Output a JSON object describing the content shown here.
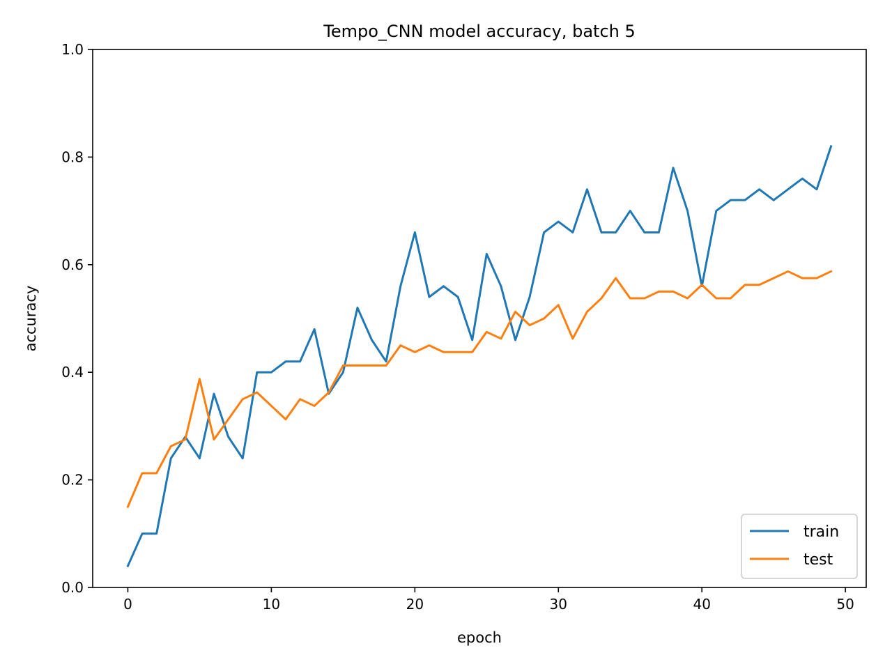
{
  "chart_data": {
    "type": "line",
    "title": "Tempo_CNN model accuracy, batch 5",
    "xlabel": "epoch",
    "ylabel": "accuracy",
    "xlim": [
      -2.45,
      51.45
    ],
    "ylim": [
      0,
      1
    ],
    "xticks": [
      0,
      10,
      20,
      30,
      40,
      50
    ],
    "xtick_labels": [
      "0",
      "10",
      "20",
      "30",
      "40",
      "50"
    ],
    "yticks": [
      0,
      0.2,
      0.4,
      0.6,
      0.8,
      1.0
    ],
    "ytick_labels": [
      "0.0",
      "0.2",
      "0.4",
      "0.6",
      "0.8",
      "1.0"
    ],
    "grid": false,
    "legend_position": "bottom-right",
    "x": [
      0,
      1,
      2,
      3,
      4,
      5,
      6,
      7,
      8,
      9,
      10,
      11,
      12,
      13,
      14,
      15,
      16,
      17,
      18,
      19,
      20,
      21,
      22,
      23,
      24,
      25,
      26,
      27,
      28,
      29,
      30,
      31,
      32,
      33,
      34,
      35,
      36,
      37,
      38,
      39,
      40,
      41,
      42,
      43,
      44,
      45,
      46,
      47,
      48,
      49
    ],
    "series": [
      {
        "name": "train",
        "color": "#1f77b4",
        "values": [
          0.04,
          0.1,
          0.1,
          0.24,
          0.28,
          0.24,
          0.36,
          0.28,
          0.24,
          0.4,
          0.4,
          0.42,
          0.42,
          0.48,
          0.36,
          0.4,
          0.52,
          0.46,
          0.42,
          0.56,
          0.66,
          0.54,
          0.56,
          0.54,
          0.46,
          0.62,
          0.56,
          0.46,
          0.54,
          0.66,
          0.68,
          0.66,
          0.74,
          0.66,
          0.66,
          0.7,
          0.66,
          0.66,
          0.78,
          0.7,
          0.56,
          0.7,
          0.72,
          0.72,
          0.74,
          0.72,
          0.74,
          0.76,
          0.74,
          0.82
        ]
      },
      {
        "name": "test",
        "color": "#ff7f0e",
        "values": [
          0.15,
          0.2125,
          0.2125,
          0.2625,
          0.275,
          0.3875,
          0.275,
          0.3125,
          0.35,
          0.3625,
          0.3375,
          0.3125,
          0.35,
          0.3375,
          0.3625,
          0.4125,
          0.4125,
          0.4125,
          0.4125,
          0.45,
          0.4375,
          0.45,
          0.4375,
          0.4375,
          0.4375,
          0.475,
          0.4625,
          0.5125,
          0.4875,
          0.5,
          0.525,
          0.4625,
          0.5125,
          0.5375,
          0.575,
          0.5375,
          0.5375,
          0.55,
          0.55,
          0.5375,
          0.5625,
          0.5375,
          0.5375,
          0.5625,
          0.5625,
          0.575,
          0.5875,
          0.575,
          0.575,
          0.5875
        ]
      }
    ]
  }
}
